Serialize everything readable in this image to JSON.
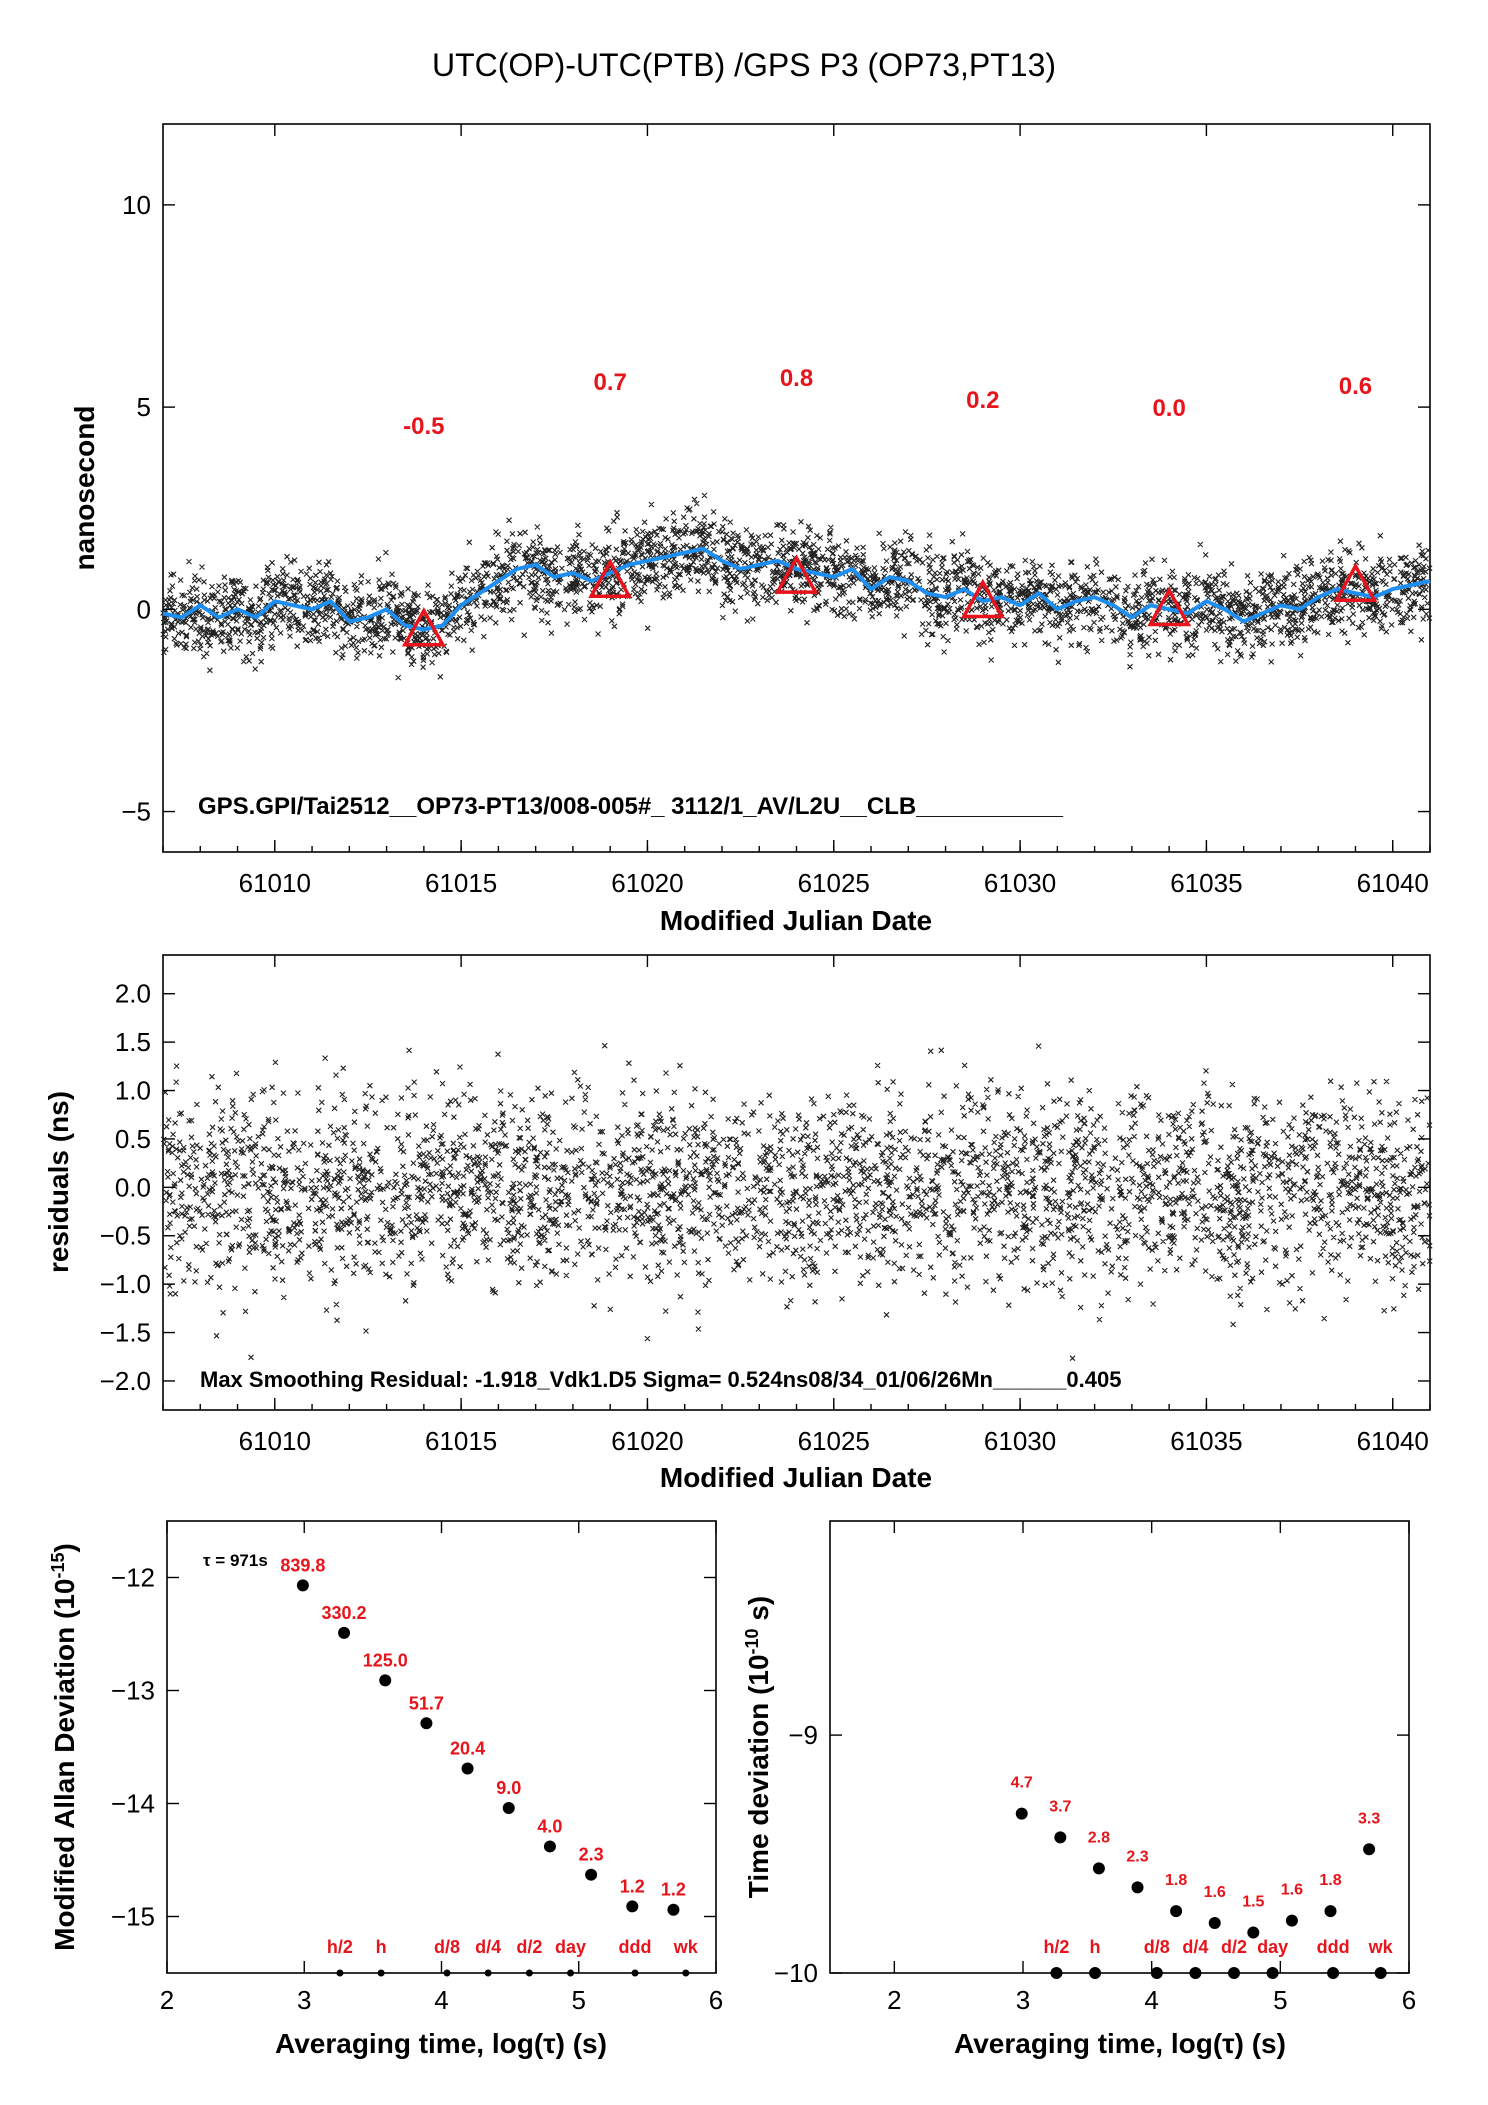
{
  "title": "UTC(OP)-UTC(PTB)  /GPS  P3  (OP73,PT13)",
  "chart_data": [
    {
      "id": "main",
      "type": "scatter",
      "xlabel": "Modified Julian Date",
      "ylabel": "nanosecond",
      "xlim": [
        61007,
        61041
      ],
      "ylim": [
        -6,
        12
      ],
      "xticks": [
        "61010",
        "61015",
        "61020",
        "61025",
        "61030",
        "61035",
        "61040"
      ],
      "yticks": [
        "−5",
        "0",
        "5",
        "10"
      ],
      "note": "GPS.GPI/Tai2512__OP73-PT13/008-005#_  3112/1_AV/L2U__CLB___________",
      "smooth_color": "#1e8ff0",
      "scatter_color": "#222222",
      "triangle_color": "#e8141b",
      "means": [
        {
          "mjd": 61014,
          "value": -0.5,
          "label": "-0.5"
        },
        {
          "mjd": 61019,
          "value": 0.7,
          "label": "0.7"
        },
        {
          "mjd": 61024,
          "value": 0.8,
          "label": "0.8"
        },
        {
          "mjd": 61029,
          "value": 0.2,
          "label": "0.2"
        },
        {
          "mjd": 61034,
          "value": 0.0,
          "label": "0.0"
        },
        {
          "mjd": 61039,
          "value": 0.6,
          "label": "0.6"
        }
      ],
      "smooth_x": [
        61007,
        61007.5,
        61008,
        61008.5,
        61009,
        61009.5,
        61010,
        61010.5,
        61011,
        61011.5,
        61012,
        61012.5,
        61013,
        61013.5,
        61014,
        61014.5,
        61015,
        61015.5,
        61016,
        61016.5,
        61017,
        61017.5,
        61018,
        61018.5,
        61019,
        61019.5,
        61020,
        61020.5,
        61021,
        61021.5,
        61022,
        61022.5,
        61023,
        61023.5,
        61024,
        61024.5,
        61025,
        61025.5,
        61026,
        61026.5,
        61027,
        61027.5,
        61028,
        61028.5,
        61029,
        61029.5,
        61030,
        61030.5,
        61031,
        61031.5,
        61032,
        61032.5,
        61033,
        61033.5,
        61034,
        61034.5,
        61035,
        61035.5,
        61036,
        61036.5,
        61037,
        61037.5,
        61038,
        61038.5,
        61039,
        61039.5,
        61040,
        61040.5,
        61041
      ],
      "smooth_y": [
        -0.1,
        -0.2,
        0.1,
        -0.2,
        0.0,
        -0.2,
        0.2,
        0.1,
        0.0,
        0.2,
        -0.3,
        -0.2,
        0.0,
        -0.4,
        -0.5,
        -0.4,
        0.1,
        0.4,
        0.7,
        1.0,
        1.1,
        0.8,
        0.9,
        0.7,
        0.9,
        1.1,
        1.2,
        1.3,
        1.4,
        1.5,
        1.2,
        1.0,
        1.1,
        1.2,
        1.0,
        0.9,
        0.8,
        1.0,
        0.5,
        0.8,
        0.7,
        0.4,
        0.3,
        0.5,
        0.2,
        0.3,
        0.1,
        0.4,
        0.0,
        0.2,
        0.3,
        0.1,
        -0.2,
        0.1,
        0.0,
        -0.1,
        0.2,
        0.0,
        -0.3,
        -0.1,
        0.1,
        0.0,
        0.3,
        0.5,
        0.4,
        0.3,
        0.5,
        0.6,
        0.7
      ]
    },
    {
      "id": "residuals",
      "type": "scatter",
      "xlabel": "Modified Julian Date",
      "ylabel": "residuals (ns)",
      "xlim": [
        61007,
        61041
      ],
      "ylim": [
        -2.3,
        2.4
      ],
      "xticks": [
        "61010",
        "61015",
        "61020",
        "61025",
        "61030",
        "61035",
        "61040"
      ],
      "yticks": [
        "−2.0",
        "−1.5",
        "−1.0",
        "−0.5",
        "0.0",
        "0.5",
        "1.0",
        "1.5",
        "2.0"
      ],
      "note": "Max Smoothing Residual: -1.918_Vdk1.D5  Sigma= 0.524ns08/34_01/06/26Mn______0.405"
    },
    {
      "id": "mdev",
      "type": "scatter",
      "xlabel": "Averaging time, log(τ) (s)",
      "ylabel": "Modified Allan Deviation (10",
      "ylabel_exp": "-15",
      "ylabel_tail": ")",
      "xlim": [
        2,
        6
      ],
      "ylim": [
        -15.5,
        -11.5
      ],
      "xticks": [
        "2",
        "3",
        "4",
        "5",
        "6"
      ],
      "yticks": [
        "−15",
        "−14",
        "−13",
        "−12"
      ],
      "tau_label": "τ = 971s",
      "points": [
        {
          "x": 2.99,
          "y": -12.07,
          "label": "839.8"
        },
        {
          "x": 3.29,
          "y": -12.49,
          "label": "330.2"
        },
        {
          "x": 3.59,
          "y": -12.91,
          "label": "125.0"
        },
        {
          "x": 3.89,
          "y": -13.29,
          "label": "51.7"
        },
        {
          "x": 4.19,
          "y": -13.69,
          "label": "20.4"
        },
        {
          "x": 4.49,
          "y": -14.04,
          "label": "9.0"
        },
        {
          "x": 4.79,
          "y": -14.38,
          "label": "4.0"
        },
        {
          "x": 5.09,
          "y": -14.63,
          "label": "2.3"
        },
        {
          "x": 5.39,
          "y": -14.91,
          "label": "1.2"
        },
        {
          "x": 5.69,
          "y": -14.94,
          "label": "1.2"
        }
      ],
      "interval_markers": [
        {
          "x": 3.26,
          "label": "h/2"
        },
        {
          "x": 3.56,
          "label": "h"
        },
        {
          "x": 4.04,
          "label": "d/8"
        },
        {
          "x": 4.34,
          "label": "d/4"
        },
        {
          "x": 4.64,
          "label": "d/2"
        },
        {
          "x": 4.94,
          "label": "day"
        },
        {
          "x": 5.41,
          "label": "ddd"
        },
        {
          "x": 5.78,
          "label": "wk"
        }
      ]
    },
    {
      "id": "tdev",
      "type": "scatter",
      "xlabel": "Averaging time, log(τ) (s)",
      "ylabel": "Time deviation (10",
      "ylabel_exp": "-10",
      "ylabel_tail": " s)",
      "xlim": [
        1.5,
        6
      ],
      "ylim": [
        -10,
        -8.1
      ],
      "xticks": [
        "2",
        "3",
        "4",
        "5",
        "6"
      ],
      "yticks": [
        "−10",
        "−9"
      ],
      "points": [
        {
          "x": 2.99,
          "y": -9.33,
          "label": "4.7"
        },
        {
          "x": 3.29,
          "y": -9.43,
          "label": "3.7"
        },
        {
          "x": 3.59,
          "y": -9.56,
          "label": "2.8"
        },
        {
          "x": 3.89,
          "y": -9.64,
          "label": "2.3"
        },
        {
          "x": 4.19,
          "y": -9.74,
          "label": "1.8"
        },
        {
          "x": 4.49,
          "y": -9.79,
          "label": "1.6"
        },
        {
          "x": 4.79,
          "y": -9.83,
          "label": "1.5"
        },
        {
          "x": 5.09,
          "y": -9.78,
          "label": "1.6"
        },
        {
          "x": 5.39,
          "y": -9.74,
          "label": "1.8"
        },
        {
          "x": 5.69,
          "y": -9.48,
          "label": "3.3"
        }
      ],
      "interval_markers": [
        {
          "x": 3.26,
          "label": "h/2"
        },
        {
          "x": 3.56,
          "label": "h"
        },
        {
          "x": 4.04,
          "label": "d/8"
        },
        {
          "x": 4.34,
          "label": "d/4"
        },
        {
          "x": 4.64,
          "label": "d/2"
        },
        {
          "x": 4.94,
          "label": "day"
        },
        {
          "x": 5.41,
          "label": "ddd"
        },
        {
          "x": 5.78,
          "label": "wk"
        }
      ]
    }
  ]
}
